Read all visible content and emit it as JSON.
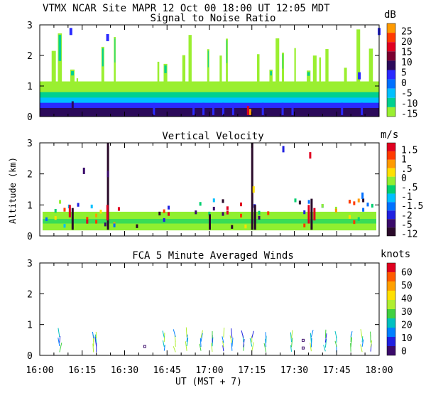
{
  "header": {
    "line1": "VTMX   NCAR Site   MAPR 12 Oct 00   18:00 UT   12:05   MDT"
  },
  "chart_data": [
    {
      "type": "heatmap",
      "title": "Signal to Noise Ratio",
      "unit": "dB",
      "y_ticks": [
        "0",
        "1",
        "2",
        "3"
      ],
      "ylim": [
        0,
        3
      ],
      "colorbar_labels": [
        "25",
        "20",
        "15",
        "10",
        "5",
        "0",
        "-5",
        "-10",
        "-15"
      ],
      "colorbar_colors": [
        "#ff9a00",
        "#ff3a00",
        "#e00020",
        "#7a0030",
        "#2b0a5a",
        "#2a2aff",
        "#0070ff",
        "#00c0ff",
        "#00d090",
        "#9aef30"
      ],
      "time_range_min": [
        0,
        120
      ],
      "layers": [
        {
          "name": "deep",
          "top_km": 0.28,
          "color": "#2b0a5a"
        },
        {
          "name": "blue",
          "top_km": 0.45,
          "color": "#2a2aff"
        },
        {
          "name": "cyan",
          "top_km": 0.62,
          "color": "#00c0ff"
        },
        {
          "name": "teal",
          "top_km": 0.8,
          "color": "#00d090"
        },
        {
          "name": "green",
          "top_km": 1.15,
          "color": "#9aef30"
        }
      ]
    },
    {
      "type": "heatmap",
      "title": "Vertical Velocity",
      "unit": "m/s",
      "ylabel": "Altitude (km)",
      "y_ticks": [
        "0",
        "1",
        "2",
        "3"
      ],
      "ylim": [
        0,
        3
      ],
      "colorbar_labels": [
        "1.5",
        "1",
        ".5",
        "0",
        "-.5",
        "-1",
        "-1.5",
        "-2",
        "-5",
        "-12"
      ],
      "colorbar_colors": [
        "#e00020",
        "#ff3a00",
        "#ff9a00",
        "#ffe000",
        "#90ef30",
        "#00d070",
        "#00c0ff",
        "#0070ff",
        "#2020e0",
        "#3a0a6a",
        "#2a0a2a"
      ],
      "time_range_min": [
        0,
        120
      ],
      "base_top_km": 0.78,
      "base_color": "#90ef30"
    },
    {
      "type": "scatter",
      "title": "FCA 5 Minute Averaged Winds",
      "unit": "knots",
      "y_ticks": [
        "0",
        "1",
        "2",
        "3"
      ],
      "ylim": [
        0,
        3
      ],
      "colorbar_labels": [
        "60",
        "50",
        "40",
        "30",
        "20",
        "10",
        "0"
      ],
      "colorbar_colors": [
        "#e00020",
        "#ff5a00",
        "#ffa000",
        "#ffe000",
        "#b0ef30",
        "#40d040",
        "#00c0c0",
        "#0080ff",
        "#2020e0",
        "#3a0a6a"
      ],
      "time_range_min": [
        0,
        120
      ]
    }
  ],
  "x_axis": {
    "ticks": [
      "16:00",
      "16:15",
      "16:30",
      "16:45",
      "17:00",
      "17:15",
      "17:30",
      "17:45",
      "18:00"
    ],
    "label": "UT  (MST + 7)"
  }
}
